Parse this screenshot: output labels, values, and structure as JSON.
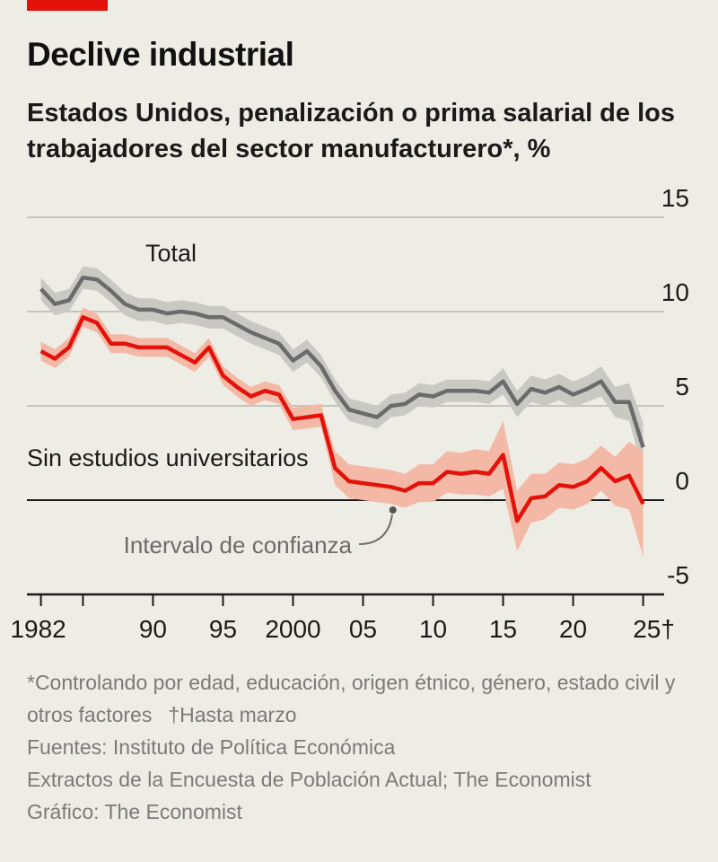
{
  "header": {
    "title": "Declive industrial",
    "subtitle": "Estados Unidos, penalización o prima salarial de los trabajadores del sector manufacturero*, %"
  },
  "chart_data": {
    "type": "line",
    "title": "Declive industrial",
    "subtitle": "Estados Unidos, penalización o prima salarial de los trabajadores del sector manufacturero*, %",
    "xlabel": "",
    "ylabel": "%",
    "xlim": [
      1981,
      2026.5
    ],
    "ylim": [
      -5,
      15
    ],
    "y_ticks": [
      15,
      10,
      5,
      0,
      -5
    ],
    "y_tick_labels": [
      "15",
      "10",
      "5",
      "0",
      "-5"
    ],
    "x_ticks": [
      1982,
      1985,
      1990,
      1995,
      2000,
      2005,
      2010,
      2015,
      2020,
      2025
    ],
    "x_tick_labels": [
      {
        "year": 1982,
        "label": "1982"
      },
      {
        "year": 1990,
        "label": "90"
      },
      {
        "year": 1995,
        "label": "95"
      },
      {
        "year": 2000,
        "label": "2000"
      },
      {
        "year": 2005,
        "label": "05"
      },
      {
        "year": 2010,
        "label": "10"
      },
      {
        "year": 2015,
        "label": "15"
      },
      {
        "year": 2020,
        "label": "20"
      },
      {
        "year": 2025,
        "label": "25†"
      }
    ],
    "colors": {
      "total_line": "#6b6b6b",
      "total_band": "#c9c9c4",
      "no_college_line": "#e3120b",
      "no_college_band": "#f3b9a6",
      "gridline": "#c4c4bd",
      "zero_line": "#1a1a1a",
      "annotation": "#6b6b6b"
    },
    "series": [
      {
        "name": "Total",
        "label_position": "above line, left",
        "x": [
          1982,
          1983,
          1984,
          1985,
          1986,
          1987,
          1988,
          1989,
          1990,
          1991,
          1992,
          1993,
          1994,
          1995,
          1996,
          1997,
          1998,
          1999,
          2000,
          2001,
          2002,
          2003,
          2004,
          2005,
          2006,
          2007,
          2008,
          2009,
          2010,
          2011,
          2012,
          2013,
          2014,
          2015,
          2016,
          2017,
          2018,
          2019,
          2020,
          2021,
          2022,
          2023,
          2024,
          2025
        ],
        "values": [
          11.2,
          10.4,
          10.6,
          11.8,
          11.7,
          11.1,
          10.4,
          10.1,
          10.1,
          9.9,
          10.0,
          9.9,
          9.7,
          9.7,
          9.3,
          8.9,
          8.6,
          8.3,
          7.4,
          7.9,
          7.1,
          5.8,
          4.8,
          4.6,
          4.4,
          5.0,
          5.1,
          5.6,
          5.5,
          5.8,
          5.8,
          5.8,
          5.7,
          6.3,
          5.1,
          5.9,
          5.7,
          6.0,
          5.6,
          5.9,
          6.3,
          5.2,
          5.2,
          2.8
        ],
        "ci_halfwidth": [
          0.6,
          0.6,
          0.6,
          0.6,
          0.6,
          0.6,
          0.6,
          0.6,
          0.6,
          0.6,
          0.6,
          0.6,
          0.6,
          0.6,
          0.6,
          0.6,
          0.6,
          0.6,
          0.6,
          0.6,
          0.6,
          0.6,
          0.6,
          0.6,
          0.6,
          0.6,
          0.6,
          0.6,
          0.6,
          0.6,
          0.6,
          0.6,
          0.6,
          0.7,
          0.7,
          0.7,
          0.7,
          0.7,
          0.7,
          0.7,
          0.8,
          0.8,
          1.0,
          1.3
        ]
      },
      {
        "name": "Sin estudios universitarios",
        "label_position": "above line, left",
        "x": [
          1982,
          1983,
          1984,
          1985,
          1986,
          1987,
          1988,
          1989,
          1990,
          1991,
          1992,
          1993,
          1994,
          1995,
          1996,
          1997,
          1998,
          1999,
          2000,
          2001,
          2002,
          2003,
          2004,
          2005,
          2006,
          2007,
          2008,
          2009,
          2010,
          2011,
          2012,
          2013,
          2014,
          2015,
          2016,
          2017,
          2018,
          2019,
          2020,
          2021,
          2022,
          2023,
          2024,
          2025
        ],
        "values": [
          7.9,
          7.5,
          8.1,
          9.7,
          9.4,
          8.3,
          8.3,
          8.1,
          8.1,
          8.1,
          7.7,
          7.3,
          8.1,
          6.6,
          6.0,
          5.5,
          5.8,
          5.6,
          4.3,
          4.4,
          4.5,
          1.7,
          1.0,
          0.9,
          0.8,
          0.7,
          0.5,
          0.9,
          0.9,
          1.5,
          1.4,
          1.5,
          1.4,
          2.4,
          -1.1,
          0.1,
          0.2,
          0.8,
          0.7,
          1.0,
          1.7,
          1.0,
          1.3,
          -0.2
        ]
      }
    ],
    "band_for_no_college_halfwidth": [
      0.5,
      0.5,
      0.5,
      0.5,
      0.5,
      0.5,
      0.5,
      0.5,
      0.5,
      0.5,
      0.5,
      0.5,
      0.5,
      0.5,
      0.5,
      0.5,
      0.5,
      0.5,
      0.6,
      0.6,
      0.6,
      0.9,
      0.9,
      0.9,
      0.9,
      0.9,
      0.9,
      1.0,
      1.0,
      1.1,
      1.1,
      1.2,
      1.2,
      1.8,
      1.6,
      1.3,
      1.2,
      1.2,
      1.2,
      1.2,
      1.2,
      1.3,
      1.8,
      2.8
    ],
    "annotation": {
      "text": "Intervalo de confianza",
      "points_to_year": 2007
    }
  },
  "footnotes": {
    "asterisk_note": "*Controlando por edad, educación, origen étnico, género, estado civil y otros factores",
    "dagger_note": "†Hasta marzo",
    "sources_line1": "Fuentes: Instituto de Política Económica",
    "sources_line2": "Extractos de la Encuesta de Población Actual; The Economist",
    "credit": "Gráfico: The Economist"
  }
}
